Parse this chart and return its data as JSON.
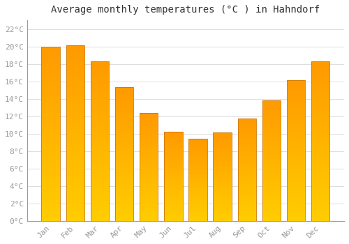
{
  "title": "Average monthly temperatures (°C ) in Hahndorf",
  "months": [
    "Jan",
    "Feb",
    "Mar",
    "Apr",
    "May",
    "Jun",
    "Jul",
    "Aug",
    "Sep",
    "Oct",
    "Nov",
    "Dec"
  ],
  "values": [
    20.0,
    20.1,
    18.3,
    15.3,
    12.4,
    10.2,
    9.4,
    10.1,
    11.7,
    13.8,
    16.1,
    18.3
  ],
  "bar_color_bottom": "#FFCC00",
  "bar_color_top": "#FF9900",
  "bar_edge_color": "#CC7700",
  "ylim": [
    0,
    23
  ],
  "yticks": [
    0,
    2,
    4,
    6,
    8,
    10,
    12,
    14,
    16,
    18,
    20,
    22
  ],
  "ytick_labels": [
    "0°C",
    "2°C",
    "4°C",
    "6°C",
    "8°C",
    "10°C",
    "12°C",
    "14°C",
    "16°C",
    "18°C",
    "20°C",
    "22°C"
  ],
  "background_color": "#ffffff",
  "grid_color": "#dddddd",
  "title_fontsize": 10,
  "tick_fontsize": 8,
  "tick_color": "#999999",
  "n_gradient_steps": 50
}
